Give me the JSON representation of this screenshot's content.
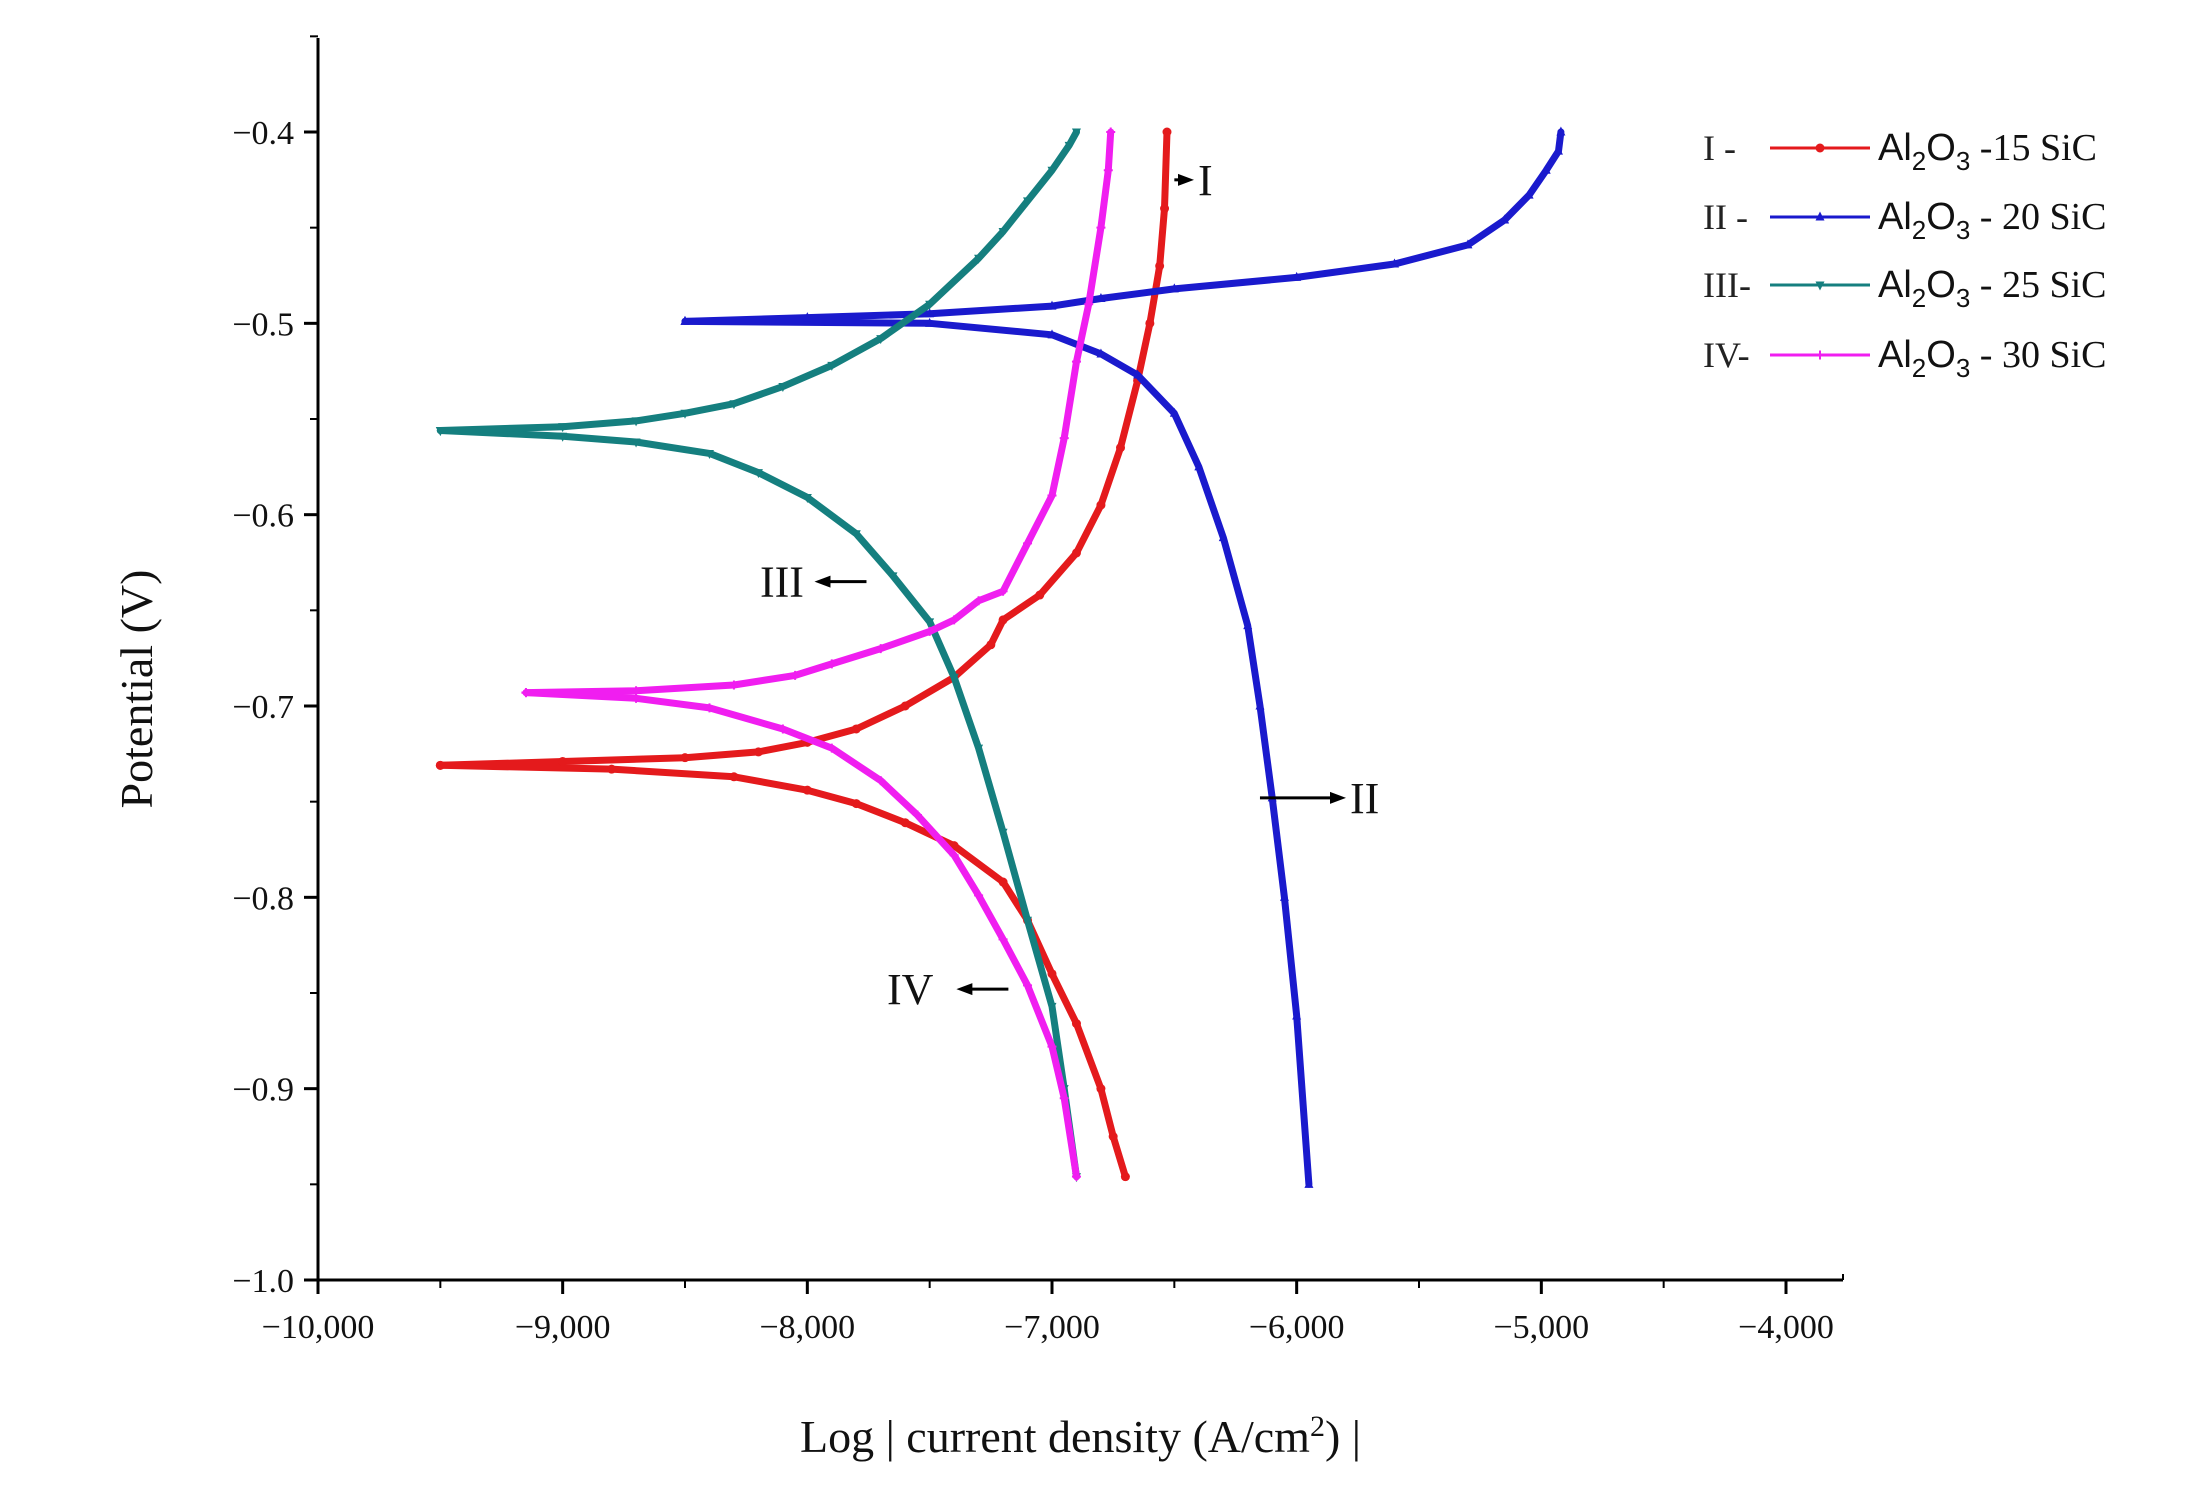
{
  "chart_data": {
    "type": "line",
    "title": "",
    "xlabel": "Log | current density (A/cm2) |",
    "xlabel_parts": {
      "pre": "Log | current density (A/cm",
      "sup": "2",
      "post": ") |"
    },
    "ylabel": "Potential (V)",
    "xlim": [
      -10000,
      -4000
    ],
    "ylim": [
      -1.0,
      -0.35
    ],
    "x_ticks": [
      -10000,
      -9000,
      -8000,
      -7000,
      -6000,
      -5000,
      -4000
    ],
    "x_tick_labels": [
      "−10,000",
      "−9,000",
      "−8,000",
      "−7,000",
      "−6,000",
      "−5,000",
      "−4,000"
    ],
    "y_ticks": [
      -1.0,
      -0.9,
      -0.8,
      -0.7,
      -0.6,
      -0.5,
      -0.4
    ],
    "y_tick_labels": [
      "−1.0",
      "−0.9",
      "−0.8",
      "−0.7",
      "−0.6",
      "−0.5",
      "−0.4"
    ],
    "legend_position": "top-right",
    "series": [
      {
        "id": "I",
        "name": "Al2O3 -15 SiC",
        "legend": {
          "roman": "I -",
          "al": "Al",
          "s2": "2",
          "o": "O",
          "s3": "3",
          "rest": " -15 SiC"
        },
        "color": "#e41a1c",
        "marker": "circle",
        "anodic": [
          [
            -9500,
            -0.731
          ],
          [
            -9000,
            -0.729
          ],
          [
            -8500,
            -0.727
          ],
          [
            -8200,
            -0.724
          ],
          [
            -8000,
            -0.719
          ],
          [
            -7800,
            -0.712
          ],
          [
            -7600,
            -0.7
          ],
          [
            -7400,
            -0.685
          ],
          [
            -7250,
            -0.668
          ],
          [
            -7200,
            -0.655
          ],
          [
            -7050,
            -0.642
          ],
          [
            -6900,
            -0.62
          ],
          [
            -6800,
            -0.595
          ],
          [
            -6720,
            -0.565
          ],
          [
            -6650,
            -0.53
          ],
          [
            -6600,
            -0.5
          ],
          [
            -6560,
            -0.47
          ],
          [
            -6540,
            -0.44
          ],
          [
            -6530,
            -0.4
          ]
        ],
        "cathodic": [
          [
            -9500,
            -0.731
          ],
          [
            -8800,
            -0.733
          ],
          [
            -8300,
            -0.737
          ],
          [
            -8000,
            -0.744
          ],
          [
            -7800,
            -0.751
          ],
          [
            -7600,
            -0.761
          ],
          [
            -7400,
            -0.773
          ],
          [
            -7200,
            -0.792
          ],
          [
            -7100,
            -0.812
          ],
          [
            -7000,
            -0.84
          ],
          [
            -6900,
            -0.866
          ],
          [
            -6800,
            -0.9
          ],
          [
            -6750,
            -0.925
          ],
          [
            -6700,
            -0.946
          ]
        ]
      },
      {
        "id": "II",
        "name": "Al2O3 - 20 SiC",
        "legend": {
          "roman": "II -",
          "al": "Al",
          "s2": "2",
          "o": "O",
          "s3": "3",
          "rest": " - 20 SiC"
        },
        "color": "#1a1acd",
        "marker": "triangle-up",
        "anodic": [
          [
            -8500,
            -0.499
          ],
          [
            -8000,
            -0.497
          ],
          [
            -7500,
            -0.495
          ],
          [
            -7000,
            -0.491
          ],
          [
            -6800,
            -0.487
          ],
          [
            -6500,
            -0.482
          ],
          [
            -6000,
            -0.476
          ],
          [
            -5600,
            -0.469
          ],
          [
            -5300,
            -0.459
          ],
          [
            -5150,
            -0.446
          ],
          [
            -5050,
            -0.433
          ],
          [
            -4980,
            -0.42
          ],
          [
            -4930,
            -0.41
          ],
          [
            -4920,
            -0.4
          ]
        ],
        "cathodic": [
          [
            -8500,
            -0.499
          ],
          [
            -7500,
            -0.5
          ],
          [
            -7000,
            -0.506
          ],
          [
            -6800,
            -0.516
          ],
          [
            -6650,
            -0.527
          ],
          [
            -6500,
            -0.547
          ],
          [
            -6400,
            -0.575
          ],
          [
            -6300,
            -0.612
          ],
          [
            -6200,
            -0.658
          ],
          [
            -6150,
            -0.7
          ],
          [
            -6100,
            -0.748
          ],
          [
            -6050,
            -0.8
          ],
          [
            -6000,
            -0.862
          ],
          [
            -5950,
            -0.95
          ]
        ]
      },
      {
        "id": "III",
        "name": "Al2O3 - 25 SiC",
        "legend": {
          "roman": "III-",
          "al": "Al",
          "s2": "2",
          "o": "O",
          "s3": "3",
          "rest": " - 25 SiC"
        },
        "color": "#157f7f",
        "marker": "triangle-down",
        "anodic": [
          [
            -9500,
            -0.556
          ],
          [
            -9000,
            -0.554
          ],
          [
            -8700,
            -0.551
          ],
          [
            -8500,
            -0.547
          ],
          [
            -8300,
            -0.542
          ],
          [
            -8100,
            -0.533
          ],
          [
            -7900,
            -0.522
          ],
          [
            -7700,
            -0.508
          ],
          [
            -7500,
            -0.49
          ],
          [
            -7300,
            -0.466
          ],
          [
            -7200,
            -0.452
          ],
          [
            -7100,
            -0.436
          ],
          [
            -7000,
            -0.42
          ],
          [
            -6930,
            -0.407
          ],
          [
            -6900,
            -0.4
          ]
        ],
        "cathodic": [
          [
            -9500,
            -0.556
          ],
          [
            -9000,
            -0.559
          ],
          [
            -8700,
            -0.562
          ],
          [
            -8400,
            -0.568
          ],
          [
            -8200,
            -0.578
          ],
          [
            -8000,
            -0.591
          ],
          [
            -7800,
            -0.61
          ],
          [
            -7650,
            -0.632
          ],
          [
            -7500,
            -0.656
          ],
          [
            -7400,
            -0.685
          ],
          [
            -7300,
            -0.722
          ],
          [
            -7200,
            -0.766
          ],
          [
            -7100,
            -0.812
          ],
          [
            -7000,
            -0.857
          ],
          [
            -6950,
            -0.9
          ],
          [
            -6900,
            -0.946
          ]
        ]
      },
      {
        "id": "IV",
        "name": "Al2O3 - 30 SiC",
        "legend": {
          "roman": "IV-",
          "al": "Al",
          "s2": "2",
          "o": "O",
          "s3": "3",
          "rest": " - 30 SiC"
        },
        "color": "#f01ef0",
        "marker": "cross",
        "anodic": [
          [
            -9150,
            -0.693
          ],
          [
            -8700,
            -0.692
          ],
          [
            -8300,
            -0.689
          ],
          [
            -8050,
            -0.684
          ],
          [
            -7900,
            -0.678
          ],
          [
            -7700,
            -0.67
          ],
          [
            -7500,
            -0.661
          ],
          [
            -7400,
            -0.655
          ],
          [
            -7300,
            -0.645
          ],
          [
            -7200,
            -0.64
          ],
          [
            -7100,
            -0.615
          ],
          [
            -7000,
            -0.59
          ],
          [
            -6950,
            -0.56
          ],
          [
            -6900,
            -0.52
          ],
          [
            -6850,
            -0.49
          ],
          [
            -6800,
            -0.45
          ],
          [
            -6770,
            -0.42
          ],
          [
            -6760,
            -0.4
          ]
        ],
        "cathodic": [
          [
            -9150,
            -0.693
          ],
          [
            -8700,
            -0.696
          ],
          [
            -8400,
            -0.701
          ],
          [
            -8100,
            -0.712
          ],
          [
            -7900,
            -0.722
          ],
          [
            -7700,
            -0.739
          ],
          [
            -7550,
            -0.757
          ],
          [
            -7400,
            -0.778
          ],
          [
            -7300,
            -0.799
          ],
          [
            -7200,
            -0.822
          ],
          [
            -7100,
            -0.846
          ],
          [
            -7000,
            -0.878
          ],
          [
            -6950,
            -0.905
          ],
          [
            -6900,
            -0.946
          ]
        ]
      }
    ],
    "annotations": [
      {
        "id": "I",
        "label": "I",
        "arrow": "from-left",
        "target": [
          -6500,
          -0.425
        ]
      },
      {
        "id": "II",
        "label": "II",
        "arrow": "from-left",
        "target": [
          -6150,
          -0.748
        ]
      },
      {
        "id": "III",
        "label": "III",
        "arrow": "from-right",
        "target": [
          -7840,
          -0.635
        ]
      },
      {
        "id": "IV",
        "label": "IV",
        "arrow": "from-right",
        "target": [
          -7260,
          -0.848
        ]
      }
    ]
  }
}
